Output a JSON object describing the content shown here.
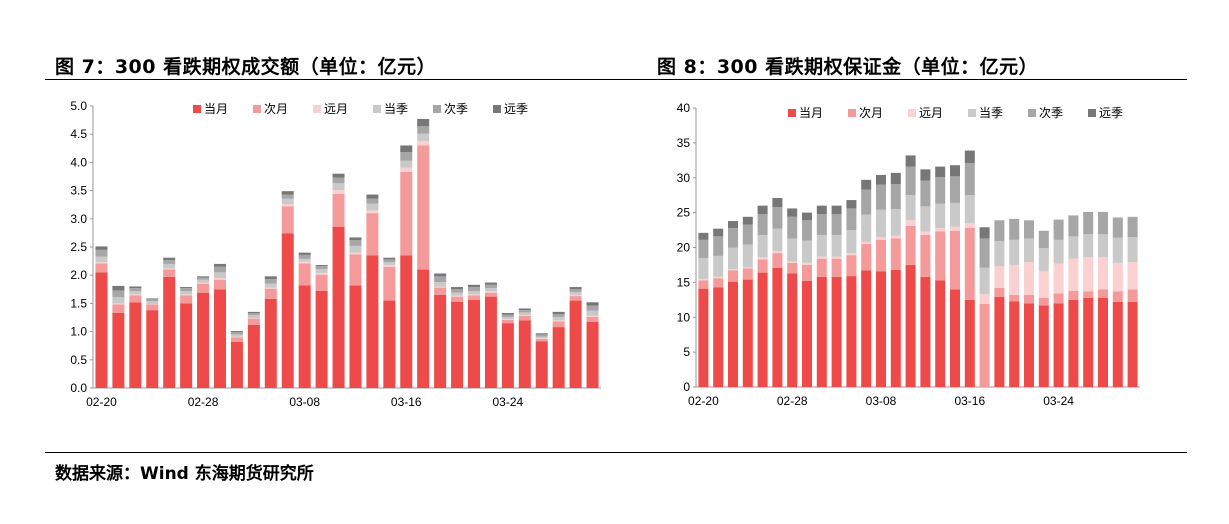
{
  "titles": {
    "left": "图 7：300 看跌期权成交额（单位：亿元）",
    "right": "图 8：300 看跌期权保证金（单位：亿元）"
  },
  "source": "数据来源：Wind   东海期货研究所",
  "colors": {
    "当月": "#ee4a4a",
    "次月": "#f59a9a",
    "远月": "#fad0d0",
    "当季": "#c9c9c9",
    "次季": "#a6a6a6",
    "远季": "#777777"
  },
  "chart_data": [
    {
      "type": "bar",
      "stacked": true,
      "title": "",
      "ylim": [
        0,
        5.0
      ],
      "yticks": [
        "0.0",
        "0.5",
        "1.0",
        "1.5",
        "2.0",
        "2.5",
        "3.0",
        "3.5",
        "4.0",
        "4.5",
        "5.0"
      ],
      "xtick_labels": [
        {
          "index": 0,
          "label": "02-20"
        },
        {
          "index": 6,
          "label": "02-28"
        },
        {
          "index": 12,
          "label": "03-08"
        },
        {
          "index": 18,
          "label": "03-16"
        },
        {
          "index": 24,
          "label": "03-24"
        }
      ],
      "legend_position": "top",
      "categories_count": 30,
      "series": [
        {
          "name": "当月",
          "values": [
            2.05,
            1.33,
            1.52,
            1.38,
            1.97,
            1.5,
            1.69,
            1.75,
            0.82,
            1.12,
            1.58,
            2.74,
            1.82,
            1.72,
            2.86,
            1.82,
            2.35,
            1.55,
            2.35,
            2.1,
            1.65,
            1.53,
            1.56,
            1.62,
            1.15,
            1.2,
            0.83,
            1.08,
            1.55,
            1.17
          ]
        },
        {
          "name": "次月",
          "values": [
            0.16,
            0.15,
            0.12,
            0.1,
            0.13,
            0.14,
            0.16,
            0.17,
            0.08,
            0.11,
            0.18,
            0.48,
            0.39,
            0.29,
            0.58,
            0.55,
            0.75,
            0.6,
            1.48,
            2.2,
            0.13,
            0.09,
            0.08,
            0.07,
            0.06,
            0.08,
            0.04,
            0.1,
            0.08,
            0.09
          ]
        },
        {
          "name": "远月",
          "values": [
            0.02,
            0.02,
            0.02,
            0.01,
            0.02,
            0.02,
            0.02,
            0.03,
            0.01,
            0.01,
            0.02,
            0.04,
            0.03,
            0.03,
            0.07,
            0.03,
            0.05,
            0.03,
            0.08,
            0.08,
            0.02,
            0.02,
            0.02,
            0.03,
            0.01,
            0.01,
            0.01,
            0.02,
            0.02,
            0.02
          ]
        },
        {
          "name": "当季",
          "values": [
            0.1,
            0.11,
            0.06,
            0.05,
            0.08,
            0.06,
            0.05,
            0.1,
            0.04,
            0.05,
            0.07,
            0.1,
            0.05,
            0.07,
            0.12,
            0.12,
            0.12,
            0.05,
            0.12,
            0.13,
            0.08,
            0.05,
            0.06,
            0.05,
            0.04,
            0.05,
            0.03,
            0.06,
            0.05,
            0.09
          ]
        },
        {
          "name": "次季",
          "values": [
            0.12,
            0.12,
            0.05,
            0.04,
            0.07,
            0.05,
            0.04,
            0.1,
            0.04,
            0.04,
            0.08,
            0.07,
            0.07,
            0.05,
            0.1,
            0.1,
            0.09,
            0.05,
            0.15,
            0.13,
            0.1,
            0.06,
            0.07,
            0.06,
            0.04,
            0.04,
            0.04,
            0.05,
            0.05,
            0.09
          ]
        },
        {
          "name": "远季",
          "values": [
            0.06,
            0.08,
            0.03,
            0.01,
            0.04,
            0.02,
            0.02,
            0.05,
            0.02,
            0.02,
            0.05,
            0.06,
            0.04,
            0.02,
            0.07,
            0.05,
            0.07,
            0.03,
            0.12,
            0.13,
            0.05,
            0.04,
            0.04,
            0.04,
            0.03,
            0.03,
            0.02,
            0.04,
            0.04,
            0.06
          ]
        }
      ]
    },
    {
      "type": "bar",
      "stacked": true,
      "title": "",
      "ylim": [
        0,
        40
      ],
      "yticks": [
        "0",
        "5",
        "10",
        "15",
        "20",
        "25",
        "30",
        "35",
        "40"
      ],
      "xtick_labels": [
        {
          "index": 0,
          "label": "02-20"
        },
        {
          "index": 6,
          "label": "02-28"
        },
        {
          "index": 12,
          "label": "03-08"
        },
        {
          "index": 18,
          "label": "03-16"
        },
        {
          "index": 24,
          "label": "03-24"
        }
      ],
      "legend_position": "top",
      "categories_count": 30,
      "series": [
        {
          "name": "当月",
          "values": [
            14.1,
            14.3,
            15.1,
            15.4,
            16.4,
            17.1,
            16.3,
            15.2,
            15.8,
            15.8,
            15.9,
            16.7,
            16.6,
            16.8,
            17.5,
            15.8,
            15.3,
            14.0,
            12.5,
            0,
            12.9,
            12.3,
            12.0,
            11.7,
            12.0,
            12.5,
            12.8,
            12.8,
            12.2,
            12.2
          ]
        },
        {
          "name": "次月",
          "values": [
            1.2,
            1.3,
            1.6,
            1.6,
            1.9,
            2.1,
            1.5,
            2.3,
            2.6,
            2.6,
            3.0,
            3.8,
            4.5,
            4.5,
            5.6,
            6.0,
            7.0,
            8.4,
            10.3,
            11.9,
            1.3,
            0.9,
            1.2,
            1.1,
            1.4,
            1.3,
            0.9,
            1.2,
            1.5,
            1.8
          ]
        },
        {
          "name": "远月",
          "values": [
            0.2,
            0.2,
            0.2,
            0.2,
            0.3,
            0.3,
            0.2,
            0.3,
            0.3,
            0.3,
            0.3,
            0.3,
            0.4,
            0.4,
            0.8,
            0.5,
            0.5,
            0.6,
            0.7,
            1.4,
            3.1,
            4.3,
            4.7,
            3.8,
            4.3,
            4.6,
            4.9,
            4.6,
            4.1,
            3.9
          ]
        },
        {
          "name": "当季",
          "values": [
            3.0,
            3.0,
            3.1,
            3.2,
            3.2,
            3.2,
            3.3,
            3.2,
            3.1,
            3.1,
            3.3,
            3.9,
            3.9,
            3.8,
            3.6,
            3.6,
            3.5,
            3.4,
            4.0,
            3.8,
            3.6,
            3.6,
            3.4,
            3.3,
            3.4,
            3.2,
            3.3,
            3.3,
            3.6,
            3.6
          ]
        },
        {
          "name": "次季",
          "values": [
            2.6,
            2.8,
            2.8,
            2.9,
            3.0,
            3.1,
            3.1,
            2.9,
            3.0,
            3.0,
            3.1,
            3.6,
            3.6,
            3.6,
            4.1,
            3.7,
            3.8,
            3.8,
            4.6,
            4.2,
            3.0,
            3.0,
            2.6,
            2.5,
            2.9,
            3.0,
            3.2,
            3.2,
            2.9,
            2.9
          ]
        },
        {
          "name": "远季",
          "values": [
            1.0,
            1.1,
            1.0,
            1.1,
            1.2,
            1.3,
            1.2,
            1.1,
            1.2,
            1.2,
            1.2,
            1.4,
            1.4,
            1.6,
            1.6,
            1.6,
            1.5,
            1.6,
            1.8,
            1.6,
            0,
            0,
            0,
            0,
            0,
            0,
            0,
            0,
            0,
            0
          ]
        }
      ]
    }
  ]
}
